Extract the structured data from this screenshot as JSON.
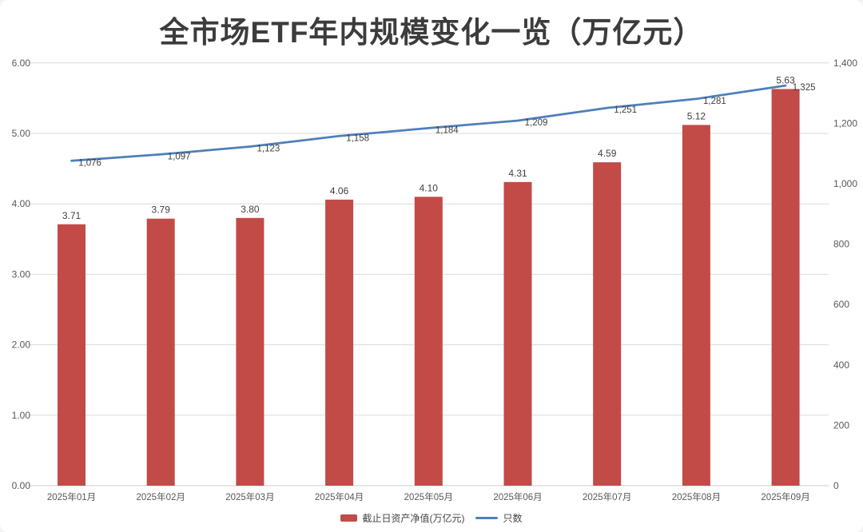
{
  "title": "全市场ETF年内规模变化一览（万亿元）",
  "colors": {
    "bar": "#c24b47",
    "line": "#4e7fba",
    "grid": "#dcdcdc",
    "baseline": "#cccccc",
    "data_label": "#3f3f3f",
    "tick_label": "#595959",
    "background": "#ffffff"
  },
  "chart_data": {
    "type": "combo-bar-line",
    "title": "全市场ETF年内规模变化一览（万亿元）",
    "categories": [
      "2025年01月",
      "2025年02月",
      "2025年03月",
      "2025年04月",
      "2025年05月",
      "2025年06月",
      "2025年07月",
      "2025年08月",
      "2025年09月"
    ],
    "series": [
      {
        "name": "截止日资产净值(万亿元)",
        "type": "bar",
        "axis": "left",
        "color": "#c24b47",
        "values": [
          3.71,
          3.79,
          3.8,
          4.06,
          4.1,
          4.31,
          4.59,
          5.12,
          5.63
        ],
        "labels": [
          "3.71",
          "3.79",
          "3.80",
          "4.06",
          "4.10",
          "4.31",
          "4.59",
          "5.12",
          "5.63"
        ]
      },
      {
        "name": "只数",
        "type": "line",
        "axis": "right",
        "color": "#4e7fba",
        "values": [
          1076,
          1097,
          1123,
          1158,
          1184,
          1209,
          1251,
          1281,
          1325
        ],
        "labels": [
          "1,076",
          "1,097",
          "1,123",
          "1,158",
          "1,184",
          "1,209",
          "1,251",
          "1,281",
          "1,325"
        ]
      }
    ],
    "left_axis": {
      "min": 0,
      "max": 6,
      "step": 1,
      "tick_labels": [
        "0.00",
        "1.00",
        "2.00",
        "3.00",
        "4.00",
        "5.00",
        "6.00"
      ]
    },
    "right_axis": {
      "min": 0,
      "max": 1400,
      "step": 200,
      "tick_labels": [
        "0",
        "200",
        "400",
        "600",
        "800",
        "1,000",
        "1,200",
        "1,400"
      ]
    },
    "grid": "horizontal",
    "legend_position": "bottom"
  }
}
